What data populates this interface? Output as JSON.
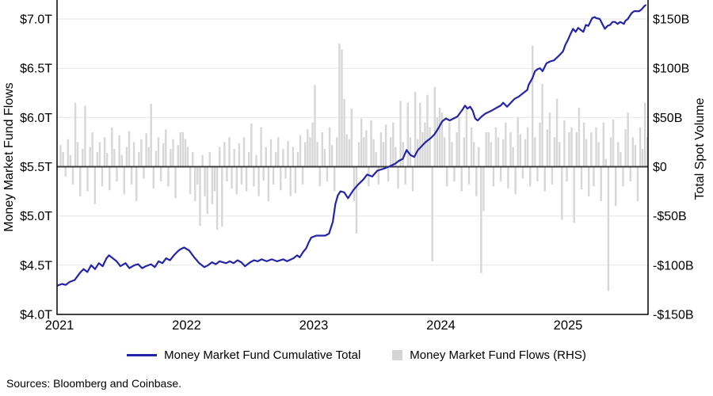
{
  "colors": {
    "line": "#2424aa",
    "bar": "#d7d7d7",
    "grid": "#e6e6e6",
    "zero_line": "#3c3c3c",
    "axis": "#000000",
    "background": "#ffffff"
  },
  "legend": {
    "items": [
      {
        "label": "Money Market Fund Cumulative Total",
        "swatch": "line"
      },
      {
        "label": "Money Market Fund Flows (RHS)",
        "swatch": "square"
      }
    ]
  },
  "footer": {
    "source": "Sources: Bloomberg and Coinbase."
  },
  "chart_data": {
    "type": "combo-line-bar",
    "title": "",
    "grid": true,
    "left_axis": {
      "label": "Money Market Fund Flows",
      "units": "trillions USD",
      "ticks": [
        "$7.0T",
        "$6.5T",
        "$6.0T",
        "$5.5T",
        "$5.0T",
        "$4.5T",
        "$4.0T"
      ],
      "tick_values": [
        7.0,
        6.5,
        6.0,
        5.5,
        5.0,
        4.5,
        4.0
      ],
      "range": [
        4.0,
        7.2
      ]
    },
    "right_axis": {
      "label": "Total Spot Volume",
      "units": "billions USD",
      "ticks": [
        "$150B",
        "$100B",
        "$50B",
        "$0",
        "-$50B",
        "-$100B",
        "-$150B"
      ],
      "tick_values": [
        150,
        100,
        50,
        0,
        -50,
        -100,
        -150
      ],
      "range": [
        -150,
        160
      ]
    },
    "x_axis": {
      "ticks": [
        "2021",
        "2022",
        "2023",
        "2024",
        "2025"
      ],
      "tick_values": [
        2021,
        2022,
        2023,
        2024,
        2025
      ],
      "range": [
        2020.98,
        2025.63
      ]
    },
    "series": [
      {
        "name": "Money Market Fund Cumulative Total",
        "type": "line",
        "axis": "left",
        "color": "#2424aa",
        "points": [
          [
            2020.98,
            4.29
          ],
          [
            2021.02,
            4.31
          ],
          [
            2021.05,
            4.3
          ],
          [
            2021.08,
            4.33
          ],
          [
            2021.12,
            4.35
          ],
          [
            2021.16,
            4.42
          ],
          [
            2021.19,
            4.46
          ],
          [
            2021.22,
            4.43
          ],
          [
            2021.25,
            4.5
          ],
          [
            2021.28,
            4.46
          ],
          [
            2021.31,
            4.52
          ],
          [
            2021.34,
            4.49
          ],
          [
            2021.37,
            4.57
          ],
          [
            2021.39,
            4.6
          ],
          [
            2021.42,
            4.57
          ],
          [
            2021.45,
            4.54
          ],
          [
            2021.48,
            4.49
          ],
          [
            2021.52,
            4.52
          ],
          [
            2021.55,
            4.47
          ],
          [
            2021.59,
            4.5
          ],
          [
            2021.62,
            4.51
          ],
          [
            2021.65,
            4.47
          ],
          [
            2021.68,
            4.49
          ],
          [
            2021.72,
            4.51
          ],
          [
            2021.75,
            4.48
          ],
          [
            2021.78,
            4.54
          ],
          [
            2021.81,
            4.52
          ],
          [
            2021.84,
            4.57
          ],
          [
            2021.87,
            4.55
          ],
          [
            2021.9,
            4.6
          ],
          [
            2021.93,
            4.64
          ],
          [
            2021.95,
            4.66
          ],
          [
            2021.98,
            4.68
          ],
          [
            2022.02,
            4.65
          ],
          [
            2022.06,
            4.58
          ],
          [
            2022.1,
            4.52
          ],
          [
            2022.14,
            4.48
          ],
          [
            2022.17,
            4.5
          ],
          [
            2022.2,
            4.53
          ],
          [
            2022.23,
            4.51
          ],
          [
            2022.26,
            4.54
          ],
          [
            2022.31,
            4.52
          ],
          [
            2022.34,
            4.54
          ],
          [
            2022.37,
            4.52
          ],
          [
            2022.4,
            4.55
          ],
          [
            2022.43,
            4.53
          ],
          [
            2022.46,
            4.49
          ],
          [
            2022.5,
            4.53
          ],
          [
            2022.53,
            4.55
          ],
          [
            2022.56,
            4.54
          ],
          [
            2022.59,
            4.56
          ],
          [
            2022.63,
            4.54
          ],
          [
            2022.67,
            4.56
          ],
          [
            2022.71,
            4.54
          ],
          [
            2022.76,
            4.56
          ],
          [
            2022.79,
            4.54
          ],
          [
            2022.84,
            4.57
          ],
          [
            2022.87,
            4.6
          ],
          [
            2022.89,
            4.58
          ],
          [
            2022.92,
            4.64
          ],
          [
            2022.94,
            4.67
          ],
          [
            2022.96,
            4.73
          ],
          [
            2022.98,
            4.78
          ],
          [
            2023.02,
            4.8
          ],
          [
            2023.09,
            4.8
          ],
          [
            2023.12,
            4.82
          ],
          [
            2023.15,
            4.94
          ],
          [
            2023.17,
            5.12
          ],
          [
            2023.19,
            5.21
          ],
          [
            2023.21,
            5.25
          ],
          [
            2023.24,
            5.24
          ],
          [
            2023.27,
            5.18
          ],
          [
            2023.31,
            5.26
          ],
          [
            2023.35,
            5.32
          ],
          [
            2023.39,
            5.37
          ],
          [
            2023.42,
            5.42
          ],
          [
            2023.46,
            5.4
          ],
          [
            2023.5,
            5.46
          ],
          [
            2023.55,
            5.48
          ],
          [
            2023.59,
            5.5
          ],
          [
            2023.64,
            5.53
          ],
          [
            2023.67,
            5.56
          ],
          [
            2023.7,
            5.58
          ],
          [
            2023.73,
            5.67
          ],
          [
            2023.76,
            5.62
          ],
          [
            2023.79,
            5.6
          ],
          [
            2023.82,
            5.67
          ],
          [
            2023.85,
            5.71
          ],
          [
            2023.88,
            5.75
          ],
          [
            2023.92,
            5.79
          ],
          [
            2023.95,
            5.83
          ],
          [
            2023.98,
            5.89
          ],
          [
            2024.01,
            5.96
          ],
          [
            2024.04,
            5.99
          ],
          [
            2024.07,
            5.97
          ],
          [
            2024.1,
            5.99
          ],
          [
            2024.13,
            6.01
          ],
          [
            2024.17,
            6.08
          ],
          [
            2024.19,
            6.12
          ],
          [
            2024.21,
            6.09
          ],
          [
            2024.23,
            6.11
          ],
          [
            2024.25,
            6.07
          ],
          [
            2024.27,
            5.99
          ],
          [
            2024.29,
            5.97
          ],
          [
            2024.32,
            6.01
          ],
          [
            2024.35,
            6.04
          ],
          [
            2024.4,
            6.07
          ],
          [
            2024.44,
            6.1
          ],
          [
            2024.47,
            6.12
          ],
          [
            2024.49,
            6.15
          ],
          [
            2024.52,
            6.11
          ],
          [
            2024.55,
            6.15
          ],
          [
            2024.58,
            6.19
          ],
          [
            2024.61,
            6.21
          ],
          [
            2024.64,
            6.24
          ],
          [
            2024.68,
            6.28
          ],
          [
            2024.69,
            6.33
          ],
          [
            2024.72,
            6.4
          ],
          [
            2024.74,
            6.47
          ],
          [
            2024.76,
            6.49
          ],
          [
            2024.78,
            6.5
          ],
          [
            2024.8,
            6.47
          ],
          [
            2024.83,
            6.55
          ],
          [
            2024.86,
            6.57
          ],
          [
            2024.89,
            6.58
          ],
          [
            2024.93,
            6.63
          ],
          [
            2024.96,
            6.67
          ],
          [
            2024.98,
            6.74
          ],
          [
            2025.0,
            6.79
          ],
          [
            2025.02,
            6.85
          ],
          [
            2025.04,
            6.9
          ],
          [
            2025.06,
            6.87
          ],
          [
            2025.08,
            6.91
          ],
          [
            2025.1,
            6.89
          ],
          [
            2025.12,
            6.87
          ],
          [
            2025.14,
            6.94
          ],
          [
            2025.16,
            6.93
          ],
          [
            2025.19,
            7.01
          ],
          [
            2025.21,
            7.02
          ],
          [
            2025.22,
            7.01
          ],
          [
            2025.25,
            7.0
          ],
          [
            2025.27,
            6.95
          ],
          [
            2025.29,
            6.9
          ],
          [
            2025.31,
            6.93
          ],
          [
            2025.33,
            6.94
          ],
          [
            2025.35,
            6.97
          ],
          [
            2025.37,
            6.97
          ],
          [
            2025.39,
            6.95
          ],
          [
            2025.41,
            6.97
          ],
          [
            2025.44,
            6.95
          ],
          [
            2025.45,
            6.98
          ],
          [
            2025.47,
            7.0
          ],
          [
            2025.5,
            7.06
          ],
          [
            2025.52,
            7.08
          ],
          [
            2025.53,
            7.08
          ],
          [
            2025.56,
            7.08
          ],
          [
            2025.58,
            7.1
          ],
          [
            2025.6,
            7.13
          ],
          [
            2025.61,
            7.14
          ]
        ]
      },
      {
        "name": "Money Market Fund Flows (RHS)",
        "type": "bar",
        "axis": "right",
        "color": "#d7d7d7",
        "start_year": 2021,
        "frequency": "weekly",
        "weekly_values": [
          22,
          15,
          -10,
          28,
          12,
          -18,
          65,
          25,
          -30,
          18,
          62,
          -25,
          20,
          35,
          -38,
          15,
          25,
          -20,
          30,
          14,
          -24,
          40,
          18,
          -15,
          32,
          12,
          -28,
          20,
          36,
          -18,
          25,
          -35,
          15,
          28,
          -12,
          34,
          20,
          64,
          -22,
          16,
          30,
          -15,
          24,
          38,
          -20,
          18,
          28,
          -32,
          22,
          35,
          35,
          28,
          20,
          -28,
          15,
          -35,
          -18,
          -60,
          12,
          -30,
          -48,
          15,
          -38,
          -25,
          -64,
          20,
          -61,
          25,
          -15,
          30,
          -22,
          18,
          -28,
          24,
          -18,
          30,
          -25,
          15,
          44,
          -20,
          12,
          -30,
          40,
          -14,
          20,
          -35,
          28,
          -18,
          15,
          30,
          -24,
          18,
          -12,
          26,
          -30,
          20,
          -27,
          15,
          32,
          -18,
          25,
          38,
          30,
          45,
          83,
          25,
          -20,
          35,
          18,
          -15,
          40,
          22,
          -25,
          30,
          125,
          119,
          69,
          33,
          28,
          59,
          -35,
          -68,
          25,
          49,
          30,
          37,
          -20,
          47,
          28,
          15,
          -18,
          35,
          25,
          43,
          -15,
          30,
          45,
          20,
          -22,
          67,
          25,
          -18,
          65,
          30,
          -25,
          76,
          28,
          65,
          35,
          45,
          73,
          40,
          -96,
          81,
          50,
          60,
          55,
          30,
          -20,
          45,
          25,
          -15,
          35,
          50,
          -25,
          30,
          60,
          -18,
          40,
          25,
          -30,
          20,
          -108,
          -45,
          35,
          35,
          25,
          -20,
          40,
          30,
          -15,
          28,
          45,
          -22,
          35,
          20,
          -28,
          50,
          33,
          -12,
          28,
          40,
          -20,
          123,
          30,
          -15,
          45,
          84,
          -25,
          38,
          55,
          -18,
          30,
          69,
          25,
          -54,
          47,
          -15,
          35,
          40,
          -57,
          35,
          60,
          -23,
          45,
          28,
          -30,
          35,
          -20,
          40,
          25,
          -35,
          45,
          8,
          -126,
          30,
          48,
          -40,
          25,
          15,
          -20,
          38,
          55,
          -15,
          30,
          22,
          -35,
          40,
          18,
          65,
          30,
          77
        ]
      }
    ]
  }
}
